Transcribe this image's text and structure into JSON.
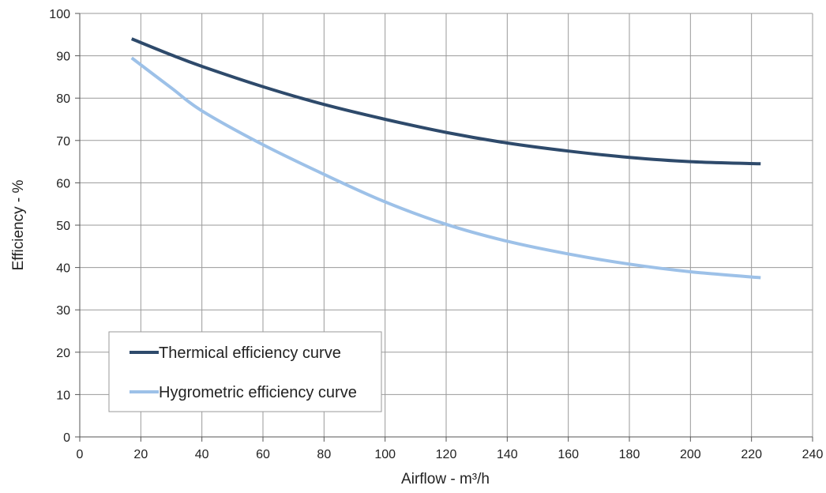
{
  "chart_data": {
    "type": "line",
    "xlabel": "Airflow - m³/h",
    "ylabel": "Efficiency - %",
    "xlim": [
      0,
      240
    ],
    "ylim": [
      0,
      100
    ],
    "x_ticks": [
      0,
      20,
      40,
      60,
      80,
      100,
      120,
      140,
      160,
      180,
      200,
      220,
      240
    ],
    "y_ticks": [
      0,
      10,
      20,
      30,
      40,
      50,
      60,
      70,
      80,
      90,
      100
    ],
    "grid": true,
    "legend_position": "bottom-left",
    "series": [
      {
        "name": "Thermical efficiency curve",
        "color": "#2e4a6b",
        "x": [
          17,
          30,
          40,
          60,
          80,
          100,
          120,
          140,
          160,
          180,
          200,
          223
        ],
        "y": [
          94,
          90.2,
          87.5,
          82.7,
          78.5,
          75,
          71.9,
          69.4,
          67.5,
          66,
          65,
          64.5
        ]
      },
      {
        "name": "Hygrometric efficiency curve",
        "color": "#9dc1e8",
        "x": [
          17,
          30,
          40,
          60,
          80,
          100,
          120,
          140,
          160,
          180,
          200,
          223
        ],
        "y": [
          89.5,
          82.4,
          77,
          69,
          62,
          55.5,
          50.2,
          46.2,
          43.2,
          40.8,
          39,
          37.6
        ]
      }
    ]
  }
}
